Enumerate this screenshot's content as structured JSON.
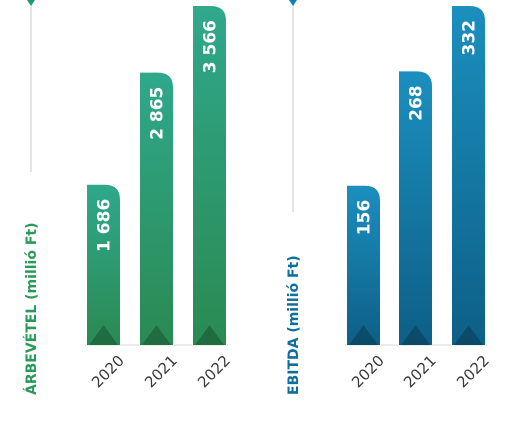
{
  "colors": {
    "green_light": "#2fa88c",
    "green_dark": "#2a8a52",
    "blue_light": "#1b8fbf",
    "blue_dark": "#0d5f86",
    "axis_line": "#c8c8c8",
    "green_marker": "#1f9a6e",
    "blue_marker": "#0e7fb3"
  },
  "chart_data": [
    {
      "type": "bar",
      "categories": [
        "2020",
        "2021",
        "2022"
      ],
      "values": [
        1686,
        2865,
        3566
      ],
      "value_labels": [
        "1 686",
        "2 865",
        "3 566"
      ],
      "ylabel": "ÁRBEVÉTEL (millió Ft)",
      "ylim": [
        0,
        3566
      ],
      "grid": false,
      "legend": "none"
    },
    {
      "type": "bar",
      "categories": [
        "2020",
        "2021",
        "2022"
      ],
      "values": [
        156,
        268,
        332
      ],
      "value_labels": [
        "156",
        "268",
        "332"
      ],
      "ylabel": "EBITDA (millió Ft)",
      "ylim": [
        0,
        332
      ],
      "grid": false,
      "legend": "none"
    }
  ]
}
